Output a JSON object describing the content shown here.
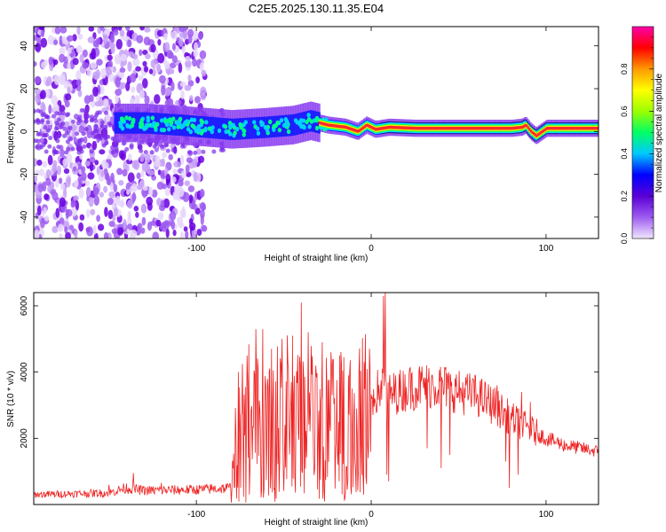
{
  "title": "C2E5.2025.130.11.35.E04",
  "chart_data": [
    {
      "type": "heatmap",
      "xlabel": "Height of straight line (km)",
      "ylabel": "Frequency (Hz)",
      "xlim": [
        -193,
        130
      ],
      "ylim": [
        -50,
        49
      ],
      "xticks": [
        -100,
        0,
        100
      ],
      "yticks": [
        -40,
        -20,
        0,
        20,
        40
      ],
      "grid": false,
      "colorbar": {
        "label": "Normalized spectral amplitude",
        "range": [
          0,
          1
        ],
        "ticks": [
          0.0,
          0.2,
          0.4,
          0.6,
          0.8
        ],
        "colors": [
          "#f2e6ff",
          "#9d5cf0",
          "#5b00d6",
          "#0000ff",
          "#00c8ff",
          "#00ff66",
          "#9bff00",
          "#ffff00",
          "#ff9900",
          "#ff0000",
          "#ff00aa"
        ]
      },
      "ridge": {
        "x": [
          -147,
          -130,
          -110,
          -95,
          -80,
          -60,
          -45,
          -35,
          -25,
          -15,
          -8,
          -3,
          2,
          10,
          25,
          50,
          80,
          86,
          88,
          91,
          94,
          100,
          130
        ],
        "y": [
          4,
          4,
          3,
          2,
          1,
          2,
          3,
          5,
          3,
          2,
          0,
          3,
          1,
          2,
          1.5,
          1.5,
          1.5,
          2,
          3,
          0,
          -2,
          1.5,
          1.5
        ]
      },
      "noise_region_x": [
        -193,
        -95
      ]
    },
    {
      "type": "line",
      "xlabel": "Height of straight line (km)",
      "ylabel": "SNR (10 * v/v)",
      "xlim": [
        -193,
        130
      ],
      "ylim": [
        0,
        6400
      ],
      "xticks": [
        -100,
        0,
        100
      ],
      "yticks": [
        2000,
        4000,
        6000
      ],
      "grid": false,
      "color": "#ee2222",
      "envelope": {
        "x": [
          -193,
          -150,
          -140,
          -130,
          -100,
          -80,
          -78,
          -75,
          -70,
          -60,
          -50,
          -40,
          -35,
          -30,
          -25,
          -20,
          -15,
          -10,
          -5,
          0,
          5,
          8,
          10,
          15,
          20,
          30,
          40,
          50,
          60,
          70,
          80,
          90,
          100,
          110,
          120,
          130
        ],
        "y": [
          300,
          350,
          500,
          420,
          450,
          500,
          1500,
          2000,
          2500,
          2000,
          2700,
          2200,
          2600,
          2000,
          2600,
          2000,
          2600,
          2300,
          2800,
          3200,
          3500,
          3600,
          3300,
          3400,
          3500,
          3600,
          3600,
          3400,
          3300,
          3000,
          2600,
          2300,
          2000,
          1800,
          1700,
          1600
        ]
      },
      "peaks": [
        {
          "x": -150,
          "y": 600
        },
        {
          "x": -136,
          "y": 950
        },
        {
          "x": -120,
          "y": 650
        },
        {
          "x": -76,
          "y": 4000
        },
        {
          "x": -71,
          "y": 4500
        },
        {
          "x": -66,
          "y": 5300
        },
        {
          "x": -62,
          "y": 5300
        },
        {
          "x": -57,
          "y": 4700
        },
        {
          "x": -51,
          "y": 5000
        },
        {
          "x": -45,
          "y": 5100
        },
        {
          "x": -40,
          "y": 6100
        },
        {
          "x": -36,
          "y": 5200
        },
        {
          "x": -28,
          "y": 4900
        },
        {
          "x": -23,
          "y": 4600
        },
        {
          "x": -18,
          "y": 4500
        },
        {
          "x": -13,
          "y": 3900
        },
        {
          "x": -7,
          "y": 4000
        },
        {
          "x": -4,
          "y": 4300
        },
        {
          "x": 7,
          "y": 6300
        },
        {
          "x": 8,
          "y": 6400
        },
        {
          "x": 22,
          "y": 4100
        },
        {
          "x": 35,
          "y": 3900
        },
        {
          "x": 46,
          "y": 3700
        },
        {
          "x": 58,
          "y": 3800
        },
        {
          "x": 72,
          "y": 3600
        },
        {
          "x": 86,
          "y": 3400
        },
        {
          "x": 91,
          "y": 3100
        }
      ],
      "dips": [
        {
          "x": 9,
          "y": 900
        },
        {
          "x": 10,
          "y": 700
        },
        {
          "x": 32,
          "y": 1700
        },
        {
          "x": 40,
          "y": 1100
        },
        {
          "x": 45,
          "y": 1500
        },
        {
          "x": 77,
          "y": 1300
        },
        {
          "x": 79,
          "y": 500
        },
        {
          "x": 84,
          "y": 900
        }
      ]
    }
  ]
}
